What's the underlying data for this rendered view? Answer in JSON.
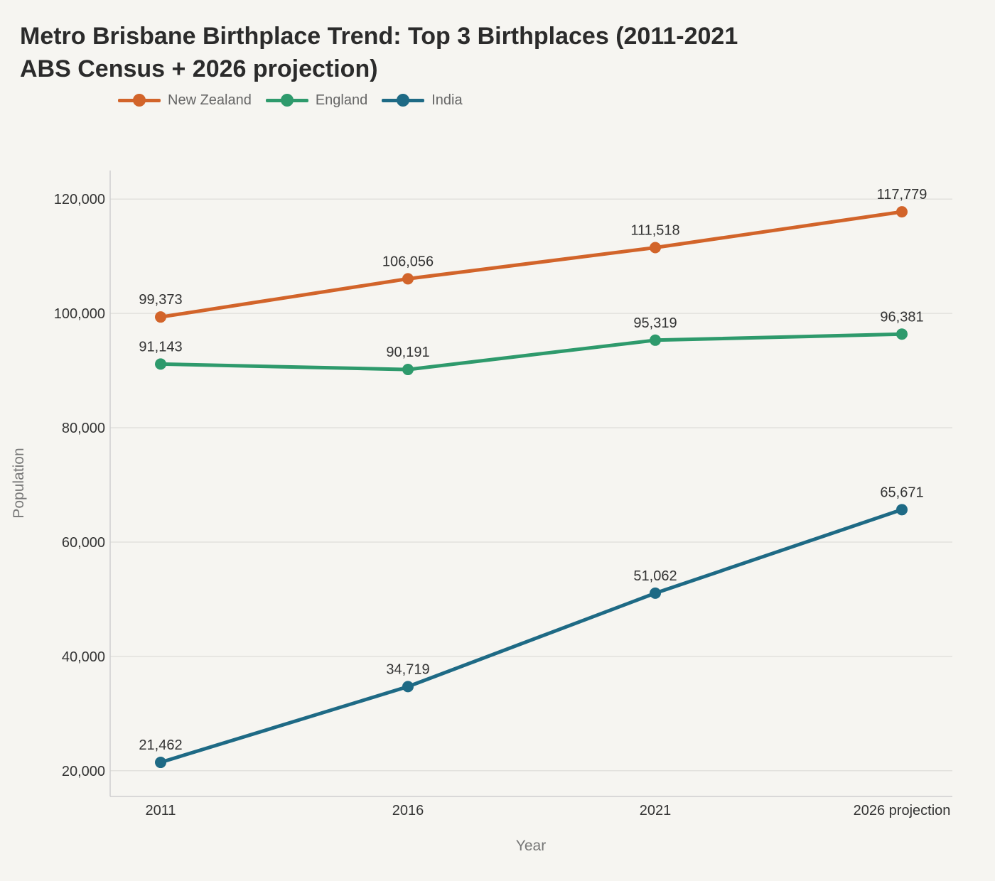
{
  "chart_data": {
    "type": "line",
    "title_lines": [
      "Metro Brisbane Birthplace Trend: Top 3 Birthplaces (2011-2021",
      "ABS Census + 2026 projection)"
    ],
    "xlabel": "Year",
    "ylabel": "Population",
    "categories": [
      "2011",
      "2016",
      "2021",
      "2026 projection"
    ],
    "ylim": [
      15500,
      125000
    ],
    "yticks": [
      20000,
      40000,
      60000,
      80000,
      100000,
      120000
    ],
    "ytick_labels": [
      "20,000",
      "40,000",
      "60,000",
      "80,000",
      "100,000",
      "120,000"
    ],
    "grid": "horizontal",
    "legend_position": "top-left",
    "series": [
      {
        "name": "New Zealand",
        "color": "#d2642a",
        "values": [
          99373,
          106056,
          111518,
          117779
        ],
        "labels": [
          "99,373",
          "106,056",
          "111,518",
          "117,779"
        ]
      },
      {
        "name": "England",
        "color": "#2e9a6c",
        "values": [
          91143,
          90191,
          95319,
          96381
        ],
        "labels": [
          "91,143",
          "90,191",
          "95,319",
          "96,381"
        ]
      },
      {
        "name": "India",
        "color": "#1e6a85",
        "values": [
          21462,
          34719,
          51062,
          65671
        ],
        "labels": [
          "21,462",
          "34,719",
          "51,062",
          "65,671"
        ]
      }
    ]
  }
}
